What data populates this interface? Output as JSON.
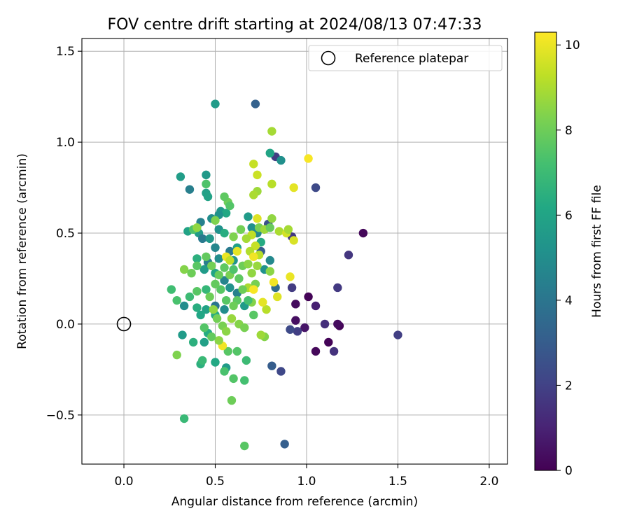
{
  "chart_data": {
    "type": "scatter",
    "title": "FOV centre drift starting at 2024/08/13 07:47:33",
    "xlabel": "Angular distance from reference (arcmin)",
    "ylabel": "Rotation from reference (arcmin)",
    "xlim": [
      -0.23,
      2.1
    ],
    "ylim": [
      -0.77,
      1.57
    ],
    "xticks": [
      0.0,
      0.5,
      1.0,
      1.5,
      2.0
    ],
    "xtick_labels": [
      "0.0",
      "0.5",
      "1.0",
      "1.5",
      "2.0"
    ],
    "yticks": [
      -0.5,
      0.0,
      0.5,
      1.0,
      1.5
    ],
    "ytick_labels": [
      "−0.5",
      "0.0",
      "0.5",
      "1.0",
      "1.5"
    ],
    "grid": true,
    "legend": {
      "position": "top-right",
      "entries": [
        "Reference platepar"
      ]
    },
    "reference_point": {
      "x": 0.0,
      "y": 0.0
    },
    "colorbar": {
      "label": "Hours from first FF file",
      "range": [
        0,
        10.3
      ],
      "ticks": [
        0,
        2,
        4,
        6,
        8,
        10
      ],
      "tick_labels": [
        "0",
        "2",
        "4",
        "6",
        "8",
        "10"
      ],
      "colormap": "viridis"
    },
    "points": [
      {
        "x": 1.31,
        "y": 0.5,
        "h": 0.2
      },
      {
        "x": 1.18,
        "y": -0.01,
        "h": 0.1
      },
      {
        "x": 1.17,
        "y": 0.0,
        "h": 0.3
      },
      {
        "x": 1.12,
        "y": -0.1,
        "h": 0.1
      },
      {
        "x": 1.05,
        "y": -0.15,
        "h": 0.2
      },
      {
        "x": 1.01,
        "y": 0.15,
        "h": 0.1
      },
      {
        "x": 0.94,
        "y": 0.11,
        "h": 0.3
      },
      {
        "x": 0.94,
        "y": 0.02,
        "h": 0.4
      },
      {
        "x": 0.99,
        "y": -0.02,
        "h": 0.6
      },
      {
        "x": 1.05,
        "y": 0.1,
        "h": 0.9
      },
      {
        "x": 1.1,
        "y": 0.0,
        "h": 1.4
      },
      {
        "x": 1.15,
        "y": -0.15,
        "h": 1.5
      },
      {
        "x": 1.23,
        "y": 0.38,
        "h": 1.6
      },
      {
        "x": 1.17,
        "y": 0.2,
        "h": 1.7
      },
      {
        "x": 1.5,
        "y": -0.06,
        "h": 1.9
      },
      {
        "x": 0.92,
        "y": 0.2,
        "h": 1.8
      },
      {
        "x": 0.95,
        "y": -0.04,
        "h": 1.9
      },
      {
        "x": 0.91,
        "y": -0.03,
        "h": 2.3
      },
      {
        "x": 0.86,
        "y": -0.26,
        "h": 2.2
      },
      {
        "x": 0.88,
        "y": -0.66,
        "h": 3.1
      },
      {
        "x": 0.81,
        "y": -0.23,
        "h": 3.0
      },
      {
        "x": 1.05,
        "y": 0.75,
        "h": 2.3
      },
      {
        "x": 0.83,
        "y": 0.92,
        "h": 1.8
      },
      {
        "x": 0.72,
        "y": 1.21,
        "h": 3.2
      },
      {
        "x": 0.92,
        "y": 0.48,
        "h": 1.7
      },
      {
        "x": 0.79,
        "y": 0.55,
        "h": 2.6
      },
      {
        "x": 0.75,
        "y": 0.4,
        "h": 3.0
      },
      {
        "x": 0.83,
        "y": 0.2,
        "h": 3.6
      },
      {
        "x": 0.8,
        "y": 0.35,
        "h": 4.8
      },
      {
        "x": 0.77,
        "y": 0.3,
        "h": 5.2
      },
      {
        "x": 0.5,
        "y": 1.21,
        "h": 5.6
      },
      {
        "x": 0.86,
        "y": 0.9,
        "h": 5.1
      },
      {
        "x": 0.8,
        "y": 0.94,
        "h": 6.0
      },
      {
        "x": 0.31,
        "y": 0.81,
        "h": 5.7
      },
      {
        "x": 0.45,
        "y": 0.82,
        "h": 5.5
      },
      {
        "x": 0.36,
        "y": 0.74,
        "h": 4.4
      },
      {
        "x": 0.45,
        "y": 0.72,
        "h": 5.8
      },
      {
        "x": 0.46,
        "y": 0.7,
        "h": 5.9
      },
      {
        "x": 0.53,
        "y": 0.62,
        "h": 5.4
      },
      {
        "x": 0.56,
        "y": 0.61,
        "h": 6.2
      },
      {
        "x": 0.52,
        "y": 0.6,
        "h": 5.2
      },
      {
        "x": 0.48,
        "y": 0.58,
        "h": 5.0
      },
      {
        "x": 0.42,
        "y": 0.56,
        "h": 4.5
      },
      {
        "x": 0.41,
        "y": 0.5,
        "h": 5.6
      },
      {
        "x": 0.35,
        "y": 0.51,
        "h": 5.9
      },
      {
        "x": 0.38,
        "y": 0.52,
        "h": 7.4
      },
      {
        "x": 0.43,
        "y": 0.47,
        "h": 4.2
      },
      {
        "x": 0.47,
        "y": 0.47,
        "h": 5.4
      },
      {
        "x": 0.52,
        "y": 0.52,
        "h": 5.2
      },
      {
        "x": 0.55,
        "y": 0.5,
        "h": 6.4
      },
      {
        "x": 0.68,
        "y": 0.59,
        "h": 5.6
      },
      {
        "x": 0.7,
        "y": 0.53,
        "h": 5.1
      },
      {
        "x": 0.73,
        "y": 0.5,
        "h": 4.8
      },
      {
        "x": 0.75,
        "y": 0.45,
        "h": 6.3
      },
      {
        "x": 0.62,
        "y": 0.42,
        "h": 5.8
      },
      {
        "x": 0.58,
        "y": 0.4,
        "h": 4.2
      },
      {
        "x": 0.6,
        "y": 0.35,
        "h": 5.3
      },
      {
        "x": 0.5,
        "y": 0.42,
        "h": 4.7
      },
      {
        "x": 0.52,
        "y": 0.36,
        "h": 5.0
      },
      {
        "x": 0.46,
        "y": 0.34,
        "h": 4.4
      },
      {
        "x": 0.4,
        "y": 0.36,
        "h": 6.5
      },
      {
        "x": 0.44,
        "y": 0.3,
        "h": 5.6
      },
      {
        "x": 0.5,
        "y": 0.28,
        "h": 6.0
      },
      {
        "x": 0.55,
        "y": 0.24,
        "h": 4.6
      },
      {
        "x": 0.58,
        "y": 0.2,
        "h": 5.2
      },
      {
        "x": 0.62,
        "y": 0.17,
        "h": 4.5
      },
      {
        "x": 0.66,
        "y": 0.1,
        "h": 5.6
      },
      {
        "x": 0.55,
        "y": 0.08,
        "h": 5.0
      },
      {
        "x": 0.5,
        "y": 0.1,
        "h": 4.0
      },
      {
        "x": 0.45,
        "y": 0.08,
        "h": 5.9
      },
      {
        "x": 0.4,
        "y": 0.09,
        "h": 6.4
      },
      {
        "x": 0.33,
        "y": 0.1,
        "h": 5.0
      },
      {
        "x": 0.36,
        "y": 0.15,
        "h": 7.0
      },
      {
        "x": 0.4,
        "y": 0.18,
        "h": 7.6
      },
      {
        "x": 0.45,
        "y": 0.19,
        "h": 6.8
      },
      {
        "x": 0.5,
        "y": 0.05,
        "h": 6.3
      },
      {
        "x": 0.42,
        "y": 0.05,
        "h": 6.1
      },
      {
        "x": 0.46,
        "y": -0.05,
        "h": 6.3
      },
      {
        "x": 0.44,
        "y": -0.1,
        "h": 5.8
      },
      {
        "x": 0.38,
        "y": -0.1,
        "h": 6.5
      },
      {
        "x": 0.32,
        "y": -0.06,
        "h": 5.6
      },
      {
        "x": 0.42,
        "y": -0.22,
        "h": 6.5
      },
      {
        "x": 0.43,
        "y": -0.2,
        "h": 6.9
      },
      {
        "x": 0.5,
        "y": -0.21,
        "h": 6.2
      },
      {
        "x": 0.56,
        "y": -0.24,
        "h": 5.6
      },
      {
        "x": 0.55,
        "y": -0.26,
        "h": 7.3
      },
      {
        "x": 0.57,
        "y": -0.15,
        "h": 7.6
      },
      {
        "x": 0.62,
        "y": -0.15,
        "h": 7.5
      },
      {
        "x": 0.67,
        "y": -0.2,
        "h": 7.0
      },
      {
        "x": 0.66,
        "y": -0.31,
        "h": 7.2
      },
      {
        "x": 0.6,
        "y": -0.3,
        "h": 7.5
      },
      {
        "x": 0.59,
        "y": -0.42,
        "h": 8.0
      },
      {
        "x": 0.66,
        "y": -0.67,
        "h": 7.6
      },
      {
        "x": 0.33,
        "y": -0.52,
        "h": 6.9
      },
      {
        "x": 0.29,
        "y": -0.17,
        "h": 8.3
      },
      {
        "x": 0.26,
        "y": 0.19,
        "h": 7.1
      },
      {
        "x": 0.29,
        "y": 0.13,
        "h": 7.3
      },
      {
        "x": 0.33,
        "y": 0.3,
        "h": 8.4
      },
      {
        "x": 0.37,
        "y": 0.28,
        "h": 8.0
      },
      {
        "x": 0.4,
        "y": 0.32,
        "h": 7.6
      },
      {
        "x": 0.45,
        "y": 0.37,
        "h": 7.8
      },
      {
        "x": 0.48,
        "y": 0.32,
        "h": 8.1
      },
      {
        "x": 0.52,
        "y": 0.27,
        "h": 7.9
      },
      {
        "x": 0.55,
        "y": 0.31,
        "h": 7.7
      },
      {
        "x": 0.58,
        "y": 0.27,
        "h": 8.2
      },
      {
        "x": 0.6,
        "y": 0.3,
        "h": 7.4
      },
      {
        "x": 0.63,
        "y": 0.25,
        "h": 7.7
      },
      {
        "x": 0.65,
        "y": 0.32,
        "h": 8.0
      },
      {
        "x": 0.68,
        "y": 0.33,
        "h": 8.5
      },
      {
        "x": 0.7,
        "y": 0.28,
        "h": 8.6
      },
      {
        "x": 0.72,
        "y": 0.22,
        "h": 8.2
      },
      {
        "x": 0.68,
        "y": 0.2,
        "h": 9.0
      },
      {
        "x": 0.65,
        "y": 0.19,
        "h": 8.0
      },
      {
        "x": 0.62,
        "y": 0.13,
        "h": 7.7
      },
      {
        "x": 0.6,
        "y": 0.1,
        "h": 8.0
      },
      {
        "x": 0.56,
        "y": 0.13,
        "h": 7.6
      },
      {
        "x": 0.53,
        "y": 0.19,
        "h": 7.6
      },
      {
        "x": 0.5,
        "y": 0.22,
        "h": 7.8
      },
      {
        "x": 0.47,
        "y": 0.15,
        "h": 8.0
      },
      {
        "x": 0.49,
        "y": 0.08,
        "h": 8.6
      },
      {
        "x": 0.51,
        "y": 0.03,
        "h": 8.1
      },
      {
        "x": 0.54,
        "y": -0.01,
        "h": 8.2
      },
      {
        "x": 0.56,
        "y": -0.04,
        "h": 8.5
      },
      {
        "x": 0.59,
        "y": 0.03,
        "h": 8.7
      },
      {
        "x": 0.63,
        "y": 0.0,
        "h": 8.4
      },
      {
        "x": 0.66,
        "y": -0.02,
        "h": 8.2
      },
      {
        "x": 0.7,
        "y": 0.12,
        "h": 8.4
      },
      {
        "x": 0.78,
        "y": 0.08,
        "h": 9.2
      },
      {
        "x": 0.77,
        "y": -0.07,
        "h": 8.4
      },
      {
        "x": 0.75,
        "y": -0.06,
        "h": 8.8
      },
      {
        "x": 0.68,
        "y": 0.13,
        "h": 7.2
      },
      {
        "x": 0.71,
        "y": 0.05,
        "h": 7.6
      },
      {
        "x": 0.73,
        "y": 0.32,
        "h": 8.7
      },
      {
        "x": 0.74,
        "y": 0.38,
        "h": 9.2
      },
      {
        "x": 0.72,
        "y": 0.43,
        "h": 9.4
      },
      {
        "x": 0.7,
        "y": 0.49,
        "h": 9.3
      },
      {
        "x": 0.73,
        "y": 0.58,
        "h": 9.8
      },
      {
        "x": 0.74,
        "y": 0.53,
        "h": 8.2
      },
      {
        "x": 0.77,
        "y": 0.52,
        "h": 8.8
      },
      {
        "x": 0.81,
        "y": 0.58,
        "h": 8.6
      },
      {
        "x": 0.8,
        "y": 0.53,
        "h": 7.9
      },
      {
        "x": 0.85,
        "y": 0.51,
        "h": 9.0
      },
      {
        "x": 0.89,
        "y": 0.5,
        "h": 9.6
      },
      {
        "x": 0.9,
        "y": 0.52,
        "h": 8.9
      },
      {
        "x": 0.93,
        "y": 0.46,
        "h": 9.7
      },
      {
        "x": 0.91,
        "y": 0.26,
        "h": 10.0
      },
      {
        "x": 0.82,
        "y": 0.23,
        "h": 10.1
      },
      {
        "x": 0.84,
        "y": 0.15,
        "h": 9.8
      },
      {
        "x": 0.8,
        "y": 0.29,
        "h": 8.5
      },
      {
        "x": 0.76,
        "y": 0.12,
        "h": 9.9
      },
      {
        "x": 0.71,
        "y": 0.19,
        "h": 10.2
      },
      {
        "x": 0.62,
        "y": 0.4,
        "h": 9.9
      },
      {
        "x": 0.56,
        "y": 0.37,
        "h": 10.0
      },
      {
        "x": 0.58,
        "y": 0.35,
        "h": 9.3
      },
      {
        "x": 0.6,
        "y": 0.48,
        "h": 8.3
      },
      {
        "x": 0.64,
        "y": 0.52,
        "h": 8.1
      },
      {
        "x": 0.67,
        "y": 0.47,
        "h": 8.9
      },
      {
        "x": 0.69,
        "y": 0.4,
        "h": 9.1
      },
      {
        "x": 0.71,
        "y": 0.37,
        "h": 10.1
      },
      {
        "x": 0.71,
        "y": 0.88,
        "h": 9.4
      },
      {
        "x": 0.73,
        "y": 0.82,
        "h": 9.5
      },
      {
        "x": 0.73,
        "y": 0.73,
        "h": 8.8
      },
      {
        "x": 0.71,
        "y": 0.71,
        "h": 9.0
      },
      {
        "x": 0.81,
        "y": 0.77,
        "h": 9.2
      },
      {
        "x": 0.93,
        "y": 0.75,
        "h": 9.9
      },
      {
        "x": 1.01,
        "y": 0.91,
        "h": 10.2
      },
      {
        "x": 0.81,
        "y": 1.06,
        "h": 8.9
      },
      {
        "x": 0.57,
        "y": 0.67,
        "h": 8.0
      },
      {
        "x": 0.55,
        "y": 0.7,
        "h": 7.7
      },
      {
        "x": 0.58,
        "y": 0.65,
        "h": 7.5
      },
      {
        "x": 0.45,
        "y": 0.77,
        "h": 7.4
      },
      {
        "x": 0.4,
        "y": 0.53,
        "h": 8.6
      },
      {
        "x": 0.5,
        "y": 0.57,
        "h": 8.3
      },
      {
        "x": 0.54,
        "y": -0.12,
        "h": 10.1
      },
      {
        "x": 0.52,
        "y": -0.09,
        "h": 8.5
      },
      {
        "x": 0.48,
        "y": -0.07,
        "h": 7.8
      },
      {
        "x": 0.44,
        "y": -0.02,
        "h": 7.5
      }
    ]
  }
}
